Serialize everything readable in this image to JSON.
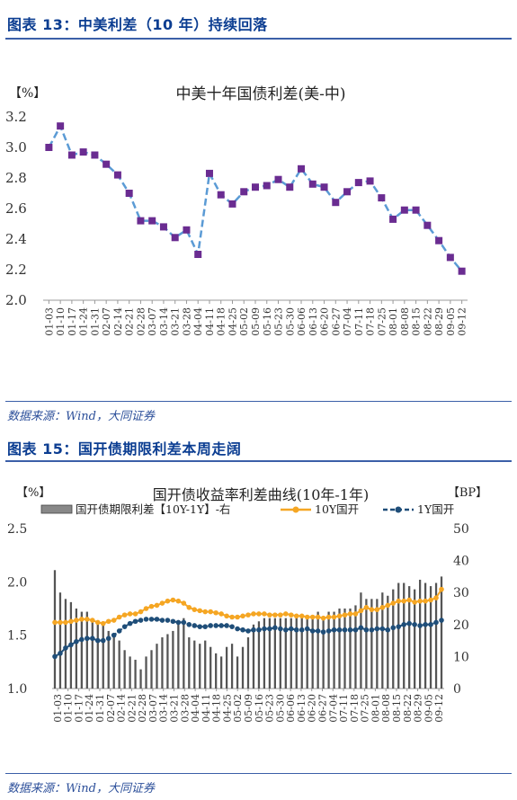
{
  "figure13": {
    "heading": "图表 13：中美利差（10 年）持续回落",
    "source": "数据来源：Wind，大同证券"
  },
  "figure15": {
    "heading": "图表 15：国开债期限利差本周走阔",
    "source": "数据来源：Wind，大同证券"
  },
  "colors": {
    "purple": "#6a2c91",
    "blue_dash": "#5b9bd5",
    "orange": "#f5a623",
    "navy": "#1f4e79",
    "bar": "#555555",
    "heading": "#0b3d91"
  },
  "chart_data": [
    {
      "type": "line",
      "title": "中美十年国债利差(美-中)",
      "ylabel": "【%】",
      "ylim": [
        2.0,
        3.2
      ],
      "yticks": [
        "3.2",
        "3.0",
        "2.8",
        "2.6",
        "2.4",
        "2.2",
        "2.0"
      ],
      "grid": false,
      "x": [
        "01-03",
        "01-10",
        "01-17",
        "01-24",
        "01-31",
        "02-07",
        "02-14",
        "02-21",
        "02-28",
        "03-07",
        "03-14",
        "03-21",
        "03-28",
        "04-04",
        "04-11",
        "04-18",
        "04-25",
        "05-02",
        "05-09",
        "05-16",
        "05-23",
        "05-30",
        "06-06",
        "06-13",
        "06-20",
        "06-27",
        "07-04",
        "07-11",
        "07-18",
        "07-25",
        "08-01",
        "08-08",
        "08-15",
        "08-22",
        "08-29",
        "09-05",
        "09-12"
      ],
      "xtick_labels": [
        "01-03",
        "01-10",
        "01-17",
        "01-24",
        "01-31",
        "02-07",
        "02-14",
        "02-21",
        "02-28",
        "03-07",
        "03-14",
        "03-21",
        "03-28",
        "04-04",
        "04-11",
        "04-18",
        "04-25",
        "05-02",
        "05-09",
        "05-16",
        "05-23",
        "05-30",
        "06-06",
        "06-13",
        "06-20",
        "06-27",
        "07-04",
        "07-11",
        "07-18",
        "07-25",
        "08-01",
        "08-08",
        "08-15",
        "08-22",
        "08-29",
        "09-05",
        "09-12"
      ],
      "values": [
        3.0,
        3.14,
        2.95,
        2.97,
        2.95,
        2.89,
        2.82,
        2.7,
        2.52,
        2.52,
        2.48,
        2.41,
        2.46,
        2.3,
        2.83,
        2.69,
        2.63,
        2.71,
        2.74,
        2.75,
        2.79,
        2.74,
        2.86,
        2.76,
        2.74,
        2.64,
        2.71,
        2.77,
        2.78,
        2.67,
        2.53,
        2.59,
        2.59,
        2.49,
        2.39,
        2.28,
        2.19
      ]
    },
    {
      "type": "bar+line",
      "title": "国开债收益率利差曲线(10年-1年)",
      "ylabel_left": "【%】",
      "ylabel_right": "【BP】",
      "ylim_left": [
        1.0,
        2.5
      ],
      "ylim_right": [
        0,
        50
      ],
      "yticks_left": [
        "2.5",
        "2.0",
        "1.5",
        "1.0"
      ],
      "yticks_right": [
        "50",
        "40",
        "30",
        "20",
        "10",
        "0"
      ],
      "legend_position": "top",
      "grid": false,
      "x": [
        "01-03",
        "01-06",
        "01-09",
        "01-12",
        "01-17",
        "01-20",
        "01-24",
        "01-27",
        "01-31",
        "02-04",
        "02-07",
        "02-11",
        "02-14",
        "02-18",
        "02-21",
        "02-25",
        "02-28",
        "03-04",
        "03-07",
        "03-11",
        "03-14",
        "03-18",
        "03-21",
        "03-25",
        "03-28",
        "04-01",
        "04-04",
        "04-08",
        "04-11",
        "04-15",
        "04-18",
        "04-22",
        "04-25",
        "04-29",
        "05-02",
        "05-06",
        "05-09",
        "05-13",
        "05-16",
        "05-20",
        "05-23",
        "05-27",
        "05-30",
        "06-03",
        "06-06",
        "06-10",
        "06-13",
        "06-17",
        "06-20",
        "06-24",
        "06-27",
        "07-01",
        "07-04",
        "07-08",
        "07-11",
        "07-15",
        "07-18",
        "07-22",
        "07-25",
        "07-29",
        "08-01",
        "08-05",
        "08-08",
        "08-12",
        "08-15",
        "08-19",
        "08-22",
        "08-26",
        "08-29",
        "09-02",
        "09-05",
        "09-09",
        "09-12"
      ],
      "xtick_labels": [
        "01-03",
        "01-10",
        "01-17",
        "01-24",
        "01-31",
        "02-07",
        "02-14",
        "02-21",
        "02-28",
        "03-07",
        "03-14",
        "03-21",
        "03-28",
        "04-04",
        "04-11",
        "04-18",
        "04-25",
        "05-02",
        "05-09",
        "05-16",
        "05-23",
        "05-30",
        "06-06",
        "06-13",
        "06-20",
        "06-27",
        "07-04",
        "07-11",
        "07-18",
        "07-25",
        "08-01",
        "08-08",
        "08-15",
        "08-22",
        "08-29",
        "09-05",
        "09-12"
      ],
      "series": [
        {
          "name": "国开债期限利差【10Y-1Y】-右",
          "kind": "bar",
          "axis": "right",
          "values": [
            37,
            30,
            28,
            27,
            25,
            24,
            24,
            22,
            21,
            20,
            18,
            16,
            15,
            12,
            10,
            9,
            6,
            10,
            12,
            14,
            16,
            17,
            18,
            20,
            22,
            16,
            15,
            14,
            15,
            13,
            11,
            10,
            13,
            14,
            10,
            13,
            16,
            20,
            21,
            22,
            22,
            22,
            22,
            22,
            22,
            23,
            23,
            23,
            22,
            24,
            22,
            24,
            24,
            25,
            25,
            25,
            26,
            30,
            28,
            28,
            28,
            30,
            29,
            31,
            33,
            33,
            32,
            31,
            34,
            33,
            32,
            33,
            35
          ]
        },
        {
          "name": "10Y国开",
          "kind": "line",
          "axis": "left",
          "values": [
            1.62,
            1.62,
            1.62,
            1.63,
            1.64,
            1.65,
            1.65,
            1.64,
            1.62,
            1.61,
            1.63,
            1.64,
            1.67,
            1.69,
            1.7,
            1.7,
            1.72,
            1.75,
            1.77,
            1.78,
            1.8,
            1.82,
            1.83,
            1.82,
            1.8,
            1.76,
            1.74,
            1.73,
            1.72,
            1.72,
            1.71,
            1.7,
            1.68,
            1.67,
            1.67,
            1.68,
            1.69,
            1.7,
            1.7,
            1.7,
            1.69,
            1.69,
            1.69,
            1.7,
            1.69,
            1.68,
            1.68,
            1.67,
            1.67,
            1.67,
            1.66,
            1.67,
            1.67,
            1.68,
            1.69,
            1.7,
            1.7,
            1.73,
            1.76,
            1.74,
            1.74,
            1.76,
            1.78,
            1.8,
            1.82,
            1.82,
            1.83,
            1.81,
            1.82,
            1.82,
            1.83,
            1.85,
            1.93
          ]
        },
        {
          "name": "1Y国开",
          "kind": "line",
          "axis": "left",
          "values": [
            1.3,
            1.33,
            1.38,
            1.41,
            1.44,
            1.46,
            1.47,
            1.47,
            1.45,
            1.45,
            1.47,
            1.5,
            1.54,
            1.58,
            1.61,
            1.63,
            1.64,
            1.65,
            1.65,
            1.65,
            1.64,
            1.64,
            1.63,
            1.62,
            1.62,
            1.6,
            1.59,
            1.58,
            1.58,
            1.59,
            1.59,
            1.59,
            1.59,
            1.58,
            1.56,
            1.55,
            1.54,
            1.55,
            1.55,
            1.56,
            1.56,
            1.57,
            1.56,
            1.55,
            1.56,
            1.55,
            1.55,
            1.56,
            1.54,
            1.54,
            1.53,
            1.54,
            1.55,
            1.55,
            1.55,
            1.55,
            1.55,
            1.57,
            1.55,
            1.55,
            1.56,
            1.56,
            1.55,
            1.57,
            1.58,
            1.6,
            1.61,
            1.6,
            1.59,
            1.6,
            1.6,
            1.62,
            1.64
          ]
        }
      ]
    }
  ]
}
